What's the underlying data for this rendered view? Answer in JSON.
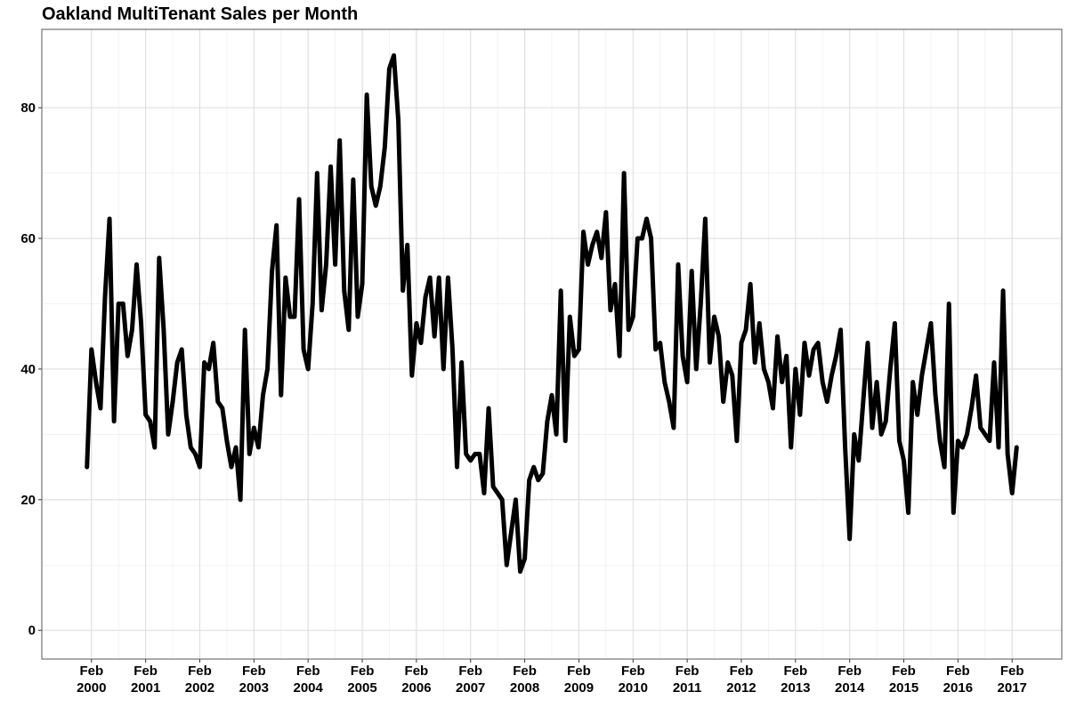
{
  "chart_data": {
    "type": "line",
    "title": "Oakland MultiTenant Sales per Month",
    "x": [
      "2000-01",
      "2000-02",
      "2000-03",
      "2000-04",
      "2000-05",
      "2000-06",
      "2000-07",
      "2000-08",
      "2000-09",
      "2000-10",
      "2000-11",
      "2000-12",
      "2001-01",
      "2001-02",
      "2001-03",
      "2001-04",
      "2001-05",
      "2001-06",
      "2001-07",
      "2001-08",
      "2001-09",
      "2001-10",
      "2001-11",
      "2001-12",
      "2002-01",
      "2002-02",
      "2002-03",
      "2002-04",
      "2002-05",
      "2002-06",
      "2002-07",
      "2002-08",
      "2002-09",
      "2002-10",
      "2002-11",
      "2002-12",
      "2003-01",
      "2003-02",
      "2003-03",
      "2003-04",
      "2003-05",
      "2003-06",
      "2003-07",
      "2003-08",
      "2003-09",
      "2003-10",
      "2003-11",
      "2003-12",
      "2004-01",
      "2004-02",
      "2004-03",
      "2004-04",
      "2004-05",
      "2004-06",
      "2004-07",
      "2004-08",
      "2004-09",
      "2004-10",
      "2004-11",
      "2004-12",
      "2005-01",
      "2005-02",
      "2005-03",
      "2005-04",
      "2005-05",
      "2005-06",
      "2005-07",
      "2005-08",
      "2005-09",
      "2005-10",
      "2005-11",
      "2005-12",
      "2006-01",
      "2006-02",
      "2006-03",
      "2006-04",
      "2006-05",
      "2006-06",
      "2006-07",
      "2006-08",
      "2006-09",
      "2006-10",
      "2006-11",
      "2006-12",
      "2007-01",
      "2007-02",
      "2007-03",
      "2007-04",
      "2007-05",
      "2007-06",
      "2007-07",
      "2007-08",
      "2007-09",
      "2007-10",
      "2007-11",
      "2007-12",
      "2008-01",
      "2008-02",
      "2008-03",
      "2008-04",
      "2008-05",
      "2008-06",
      "2008-07",
      "2008-08",
      "2008-09",
      "2008-10",
      "2008-11",
      "2008-12",
      "2009-01",
      "2009-02",
      "2009-03",
      "2009-04",
      "2009-05",
      "2009-06",
      "2009-07",
      "2009-08",
      "2009-09",
      "2009-10",
      "2009-11",
      "2009-12",
      "2010-01",
      "2010-02",
      "2010-03",
      "2010-04",
      "2010-05",
      "2010-06",
      "2010-07",
      "2010-08",
      "2010-09",
      "2010-10",
      "2010-11",
      "2010-12",
      "2011-01",
      "2011-02",
      "2011-03",
      "2011-04",
      "2011-05",
      "2011-06",
      "2011-07",
      "2011-08",
      "2011-09",
      "2011-10",
      "2011-11",
      "2011-12",
      "2012-01",
      "2012-02",
      "2012-03",
      "2012-04",
      "2012-05",
      "2012-06",
      "2012-07",
      "2012-08",
      "2012-09",
      "2012-10",
      "2012-11",
      "2012-12",
      "2013-01",
      "2013-02",
      "2013-03",
      "2013-04",
      "2013-05",
      "2013-06",
      "2013-07",
      "2013-08",
      "2013-09",
      "2013-10",
      "2013-11",
      "2013-12",
      "2014-01",
      "2014-02",
      "2014-03",
      "2014-04",
      "2014-05",
      "2014-06",
      "2014-07",
      "2014-08",
      "2014-09",
      "2014-10",
      "2014-11",
      "2014-12",
      "2015-01",
      "2015-02",
      "2015-03",
      "2015-04",
      "2015-05",
      "2015-06",
      "2015-07",
      "2015-08",
      "2015-09",
      "2015-10",
      "2015-11",
      "2015-12",
      "2016-01",
      "2016-02",
      "2016-03",
      "2016-04",
      "2016-05",
      "2016-06",
      "2016-07",
      "2016-08",
      "2016-09",
      "2016-10",
      "2016-11",
      "2016-12",
      "2017-01",
      "2017-02",
      "2017-03"
    ],
    "series": [
      {
        "color": "#000000",
        "values": [
          25,
          43,
          38,
          34,
          51,
          63,
          32,
          50,
          50,
          42,
          46,
          56,
          47,
          33,
          32,
          28,
          57,
          46,
          30,
          35,
          41,
          43,
          33,
          28,
          27,
          25,
          41,
          40,
          44,
          35,
          34,
          29,
          25,
          28,
          20,
          46,
          27,
          31,
          28,
          36,
          40,
          55,
          62,
          36,
          54,
          48,
          48,
          66,
          43,
          40,
          50,
          70,
          49,
          56,
          71,
          56,
          75,
          52,
          46,
          69,
          48,
          53,
          82,
          68,
          65,
          68,
          74,
          86,
          88,
          78,
          52,
          59,
          39,
          47,
          44,
          51,
          54,
          45,
          54,
          40,
          54,
          43,
          25,
          41,
          27,
          26,
          27,
          27,
          21,
          34,
          22,
          21,
          20,
          10,
          15,
          20,
          9,
          11,
          23,
          25,
          23,
          24,
          32,
          36,
          30,
          52,
          29,
          48,
          42,
          43,
          61,
          56,
          59,
          61,
          57,
          64,
          49,
          53,
          42,
          70,
          46,
          48,
          60,
          60,
          63,
          60,
          43,
          44,
          38,
          35,
          31,
          56,
          42,
          38,
          55,
          40,
          50,
          63,
          41,
          48,
          45,
          35,
          41,
          39,
          29,
          44,
          46,
          53,
          41,
          47,
          40,
          38,
          34,
          45,
          38,
          42,
          28,
          40,
          33,
          44,
          39,
          43,
          44,
          38,
          35,
          39,
          42,
          46,
          28,
          14,
          30,
          26,
          35,
          44,
          31,
          38,
          30,
          32,
          40,
          47,
          29,
          26,
          18,
          38,
          33,
          39,
          43,
          47,
          36,
          29,
          25,
          50,
          18,
          29,
          28,
          30,
          34,
          39,
          31,
          30,
          29,
          41,
          28,
          52,
          27,
          21,
          28
        ]
      }
    ],
    "xlim": [
      "1999-03",
      "2018-01"
    ],
    "xticks": [
      {
        "value": "2000-02",
        "label": [
          "Feb",
          "2000"
        ]
      },
      {
        "value": "2001-02",
        "label": [
          "Feb",
          "2001"
        ]
      },
      {
        "value": "2002-02",
        "label": [
          "Feb",
          "2002"
        ]
      },
      {
        "value": "2003-02",
        "label": [
          "Feb",
          "2003"
        ]
      },
      {
        "value": "2004-02",
        "label": [
          "Feb",
          "2004"
        ]
      },
      {
        "value": "2005-02",
        "label": [
          "Feb",
          "2005"
        ]
      },
      {
        "value": "2006-02",
        "label": [
          "Feb",
          "2006"
        ]
      },
      {
        "value": "2007-02",
        "label": [
          "Feb",
          "2007"
        ]
      },
      {
        "value": "2008-02",
        "label": [
          "Feb",
          "2008"
        ]
      },
      {
        "value": "2009-02",
        "label": [
          "Feb",
          "2009"
        ]
      },
      {
        "value": "2010-02",
        "label": [
          "Feb",
          "2010"
        ]
      },
      {
        "value": "2011-02",
        "label": [
          "Feb",
          "2011"
        ]
      },
      {
        "value": "2012-02",
        "label": [
          "Feb",
          "2012"
        ]
      },
      {
        "value": "2013-02",
        "label": [
          "Feb",
          "2013"
        ]
      },
      {
        "value": "2014-02",
        "label": [
          "Feb",
          "2014"
        ]
      },
      {
        "value": "2015-02",
        "label": [
          "Feb",
          "2015"
        ]
      },
      {
        "value": "2016-02",
        "label": [
          "Feb",
          "2016"
        ]
      },
      {
        "value": "2017-02",
        "label": [
          "Feb",
          "2017"
        ]
      }
    ],
    "ylim": [
      -4.4,
      92
    ],
    "yticks": [
      0,
      20,
      40,
      60,
      80
    ],
    "grid": true,
    "minor_grid": true
  }
}
